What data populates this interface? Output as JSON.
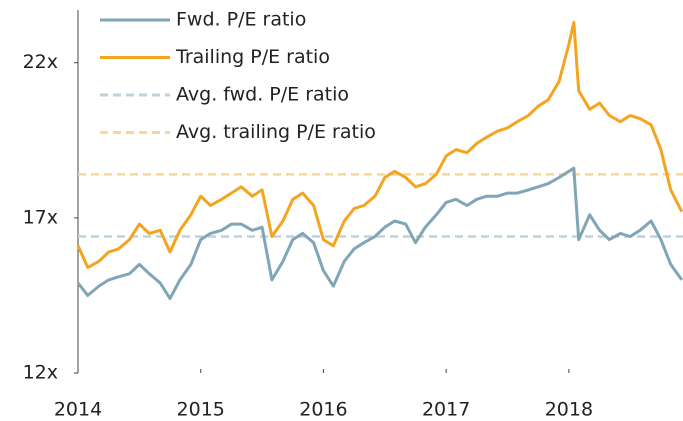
{
  "chart_data": {
    "type": "line",
    "x": [
      2014.0,
      2014.08,
      2014.17,
      2014.25,
      2014.33,
      2014.42,
      2014.5,
      2014.58,
      2014.67,
      2014.75,
      2014.83,
      2014.92,
      2015.0,
      2015.08,
      2015.17,
      2015.25,
      2015.33,
      2015.42,
      2015.5,
      2015.58,
      2015.67,
      2015.75,
      2015.83,
      2015.92,
      2016.0,
      2016.08,
      2016.17,
      2016.25,
      2016.33,
      2016.42,
      2016.5,
      2016.58,
      2016.67,
      2016.75,
      2016.83,
      2016.92,
      2017.0,
      2017.08,
      2017.17,
      2017.25,
      2017.33,
      2017.42,
      2017.5,
      2017.58,
      2017.67,
      2017.75,
      2017.83,
      2017.92,
      2018.0,
      2018.04,
      2018.08,
      2018.17,
      2018.25,
      2018.33,
      2018.42,
      2018.5,
      2018.58,
      2018.67,
      2018.75,
      2018.83,
      2018.92
    ],
    "series": [
      {
        "name": "Fwd. P/E ratio",
        "color": "#7fa5b6",
        "dash": false,
        "values": [
          14.9,
          14.5,
          14.8,
          15.0,
          15.1,
          15.2,
          15.5,
          15.2,
          14.9,
          14.4,
          15.0,
          15.5,
          16.3,
          16.5,
          16.6,
          16.8,
          16.8,
          16.6,
          16.7,
          15.0,
          15.6,
          16.3,
          16.5,
          16.2,
          15.3,
          14.8,
          15.6,
          16.0,
          16.2,
          16.4,
          16.7,
          16.9,
          16.8,
          16.2,
          16.7,
          17.1,
          17.5,
          17.6,
          17.4,
          17.6,
          17.7,
          17.7,
          17.8,
          17.8,
          17.9,
          18.0,
          18.1,
          18.3,
          18.5,
          18.6,
          16.3,
          17.1,
          16.6,
          16.3,
          16.5,
          16.4,
          16.6,
          16.9,
          16.3,
          15.5,
          15.0
        ]
      },
      {
        "name": "Trailing P/E ratio",
        "color": "#f4a41f",
        "dash": false,
        "values": [
          16.1,
          15.4,
          15.6,
          15.9,
          16.0,
          16.3,
          16.8,
          16.5,
          16.6,
          15.9,
          16.6,
          17.1,
          17.7,
          17.4,
          17.6,
          17.8,
          18.0,
          17.7,
          17.9,
          16.4,
          16.9,
          17.6,
          17.8,
          17.4,
          16.3,
          16.1,
          16.9,
          17.3,
          17.4,
          17.7,
          18.3,
          18.5,
          18.3,
          18.0,
          18.1,
          18.4,
          19.0,
          19.2,
          19.1,
          19.4,
          19.6,
          19.8,
          19.9,
          20.1,
          20.3,
          20.6,
          20.8,
          21.4,
          22.6,
          23.3,
          21.1,
          20.5,
          20.7,
          20.3,
          20.1,
          20.3,
          20.2,
          20.0,
          19.2,
          17.9,
          17.2
        ]
      },
      {
        "name": "Avg. fwd. P/E ratio",
        "color": "#bcd3dd",
        "dash": true,
        "x": [
          2014.0,
          2018.93
        ],
        "values": [
          16.4,
          16.4
        ]
      },
      {
        "name": "Avg. trailing P/E ratio",
        "color": "#f9d59b",
        "dash": true,
        "x": [
          2014.0,
          2018.93
        ],
        "values": [
          18.4,
          18.4
        ]
      }
    ],
    "xlim": [
      2014.0,
      2018.93
    ],
    "xticks": [
      2014,
      2015,
      2016,
      2017,
      2018
    ],
    "ylim": [
      12,
      23.7
    ],
    "yticks": [
      {
        "value": 12,
        "label": "12x"
      },
      {
        "value": 17,
        "label": "17x"
      },
      {
        "value": 22,
        "label": "22x"
      }
    ],
    "legend": "upper left"
  }
}
